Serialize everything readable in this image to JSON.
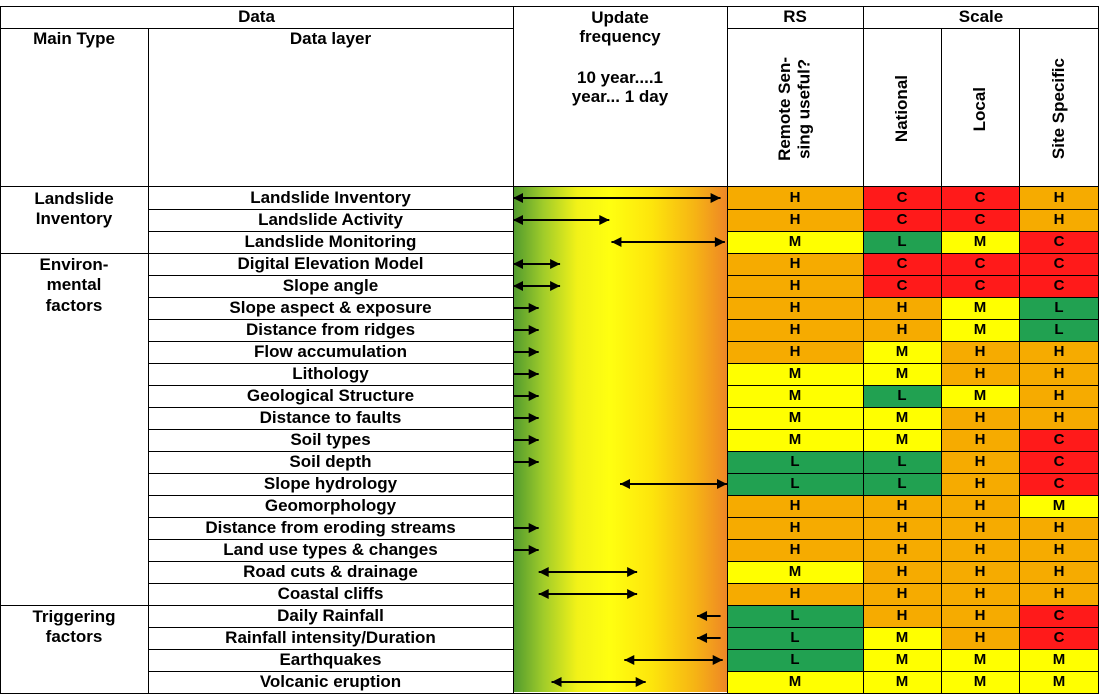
{
  "colors": {
    "H": "#f6ab00",
    "M": "#ffff00",
    "L": "#21a151",
    "C": "#ff1a1a"
  },
  "headers": {
    "data_group": "Data",
    "main_type": "Main Type",
    "data_layer": "Data layer",
    "update_line1": "Update",
    "update_line2": "frequency",
    "update_scale_line1": "10 year....1",
    "update_scale_line2": "year... 1 day",
    "rs_group": "RS",
    "rs_col": "Remote Sen-\nsing useful?",
    "scale_group": "Scale",
    "national": "National",
    "local": "Local",
    "site": "Site Specific"
  },
  "groups": [
    {
      "label": "Landslide\nInventory",
      "start": 0,
      "count": 3
    },
    {
      "label": "Environ-\nmental\nfactors",
      "start": 3,
      "count": 16
    },
    {
      "label": "Triggering\nfactors",
      "start": 19,
      "count": 4
    }
  ],
  "rows": [
    {
      "layer": "Landslide Inventory",
      "rs": "H",
      "national": "C",
      "local": "C",
      "site": "H",
      "freq": {
        "type": "both",
        "from": 0.0,
        "to": 0.97
      }
    },
    {
      "layer": "Landslide Activity",
      "rs": "H",
      "national": "C",
      "local": "C",
      "site": "H",
      "freq": {
        "type": "both",
        "from": 0.0,
        "to": 0.45
      }
    },
    {
      "layer": "Landslide Monitoring",
      "rs": "M",
      "national": "L",
      "local": "M",
      "site": "C",
      "freq": {
        "type": "both",
        "from": 0.46,
        "to": 0.99
      }
    },
    {
      "layer": "Digital Elevation Model",
      "rs": "H",
      "national": "C",
      "local": "C",
      "site": "C",
      "freq": {
        "type": "both",
        "from": 0.0,
        "to": 0.22
      }
    },
    {
      "layer": "Slope angle",
      "rs": "H",
      "national": "C",
      "local": "C",
      "site": "C",
      "freq": {
        "type": "both",
        "from": 0.0,
        "to": 0.22
      }
    },
    {
      "layer": "Slope aspect & exposure",
      "rs": "H",
      "national": "H",
      "local": "M",
      "site": "L",
      "freq": {
        "type": "right",
        "from": 0.0,
        "to": 0.12
      }
    },
    {
      "layer": "Distance from ridges",
      "rs": "H",
      "national": "H",
      "local": "M",
      "site": "L",
      "freq": {
        "type": "right",
        "from": 0.0,
        "to": 0.12
      }
    },
    {
      "layer": "Flow accumulation",
      "rs": "H",
      "national": "M",
      "local": "H",
      "site": "H",
      "freq": {
        "type": "right",
        "from": 0.0,
        "to": 0.12
      }
    },
    {
      "layer": "Lithology",
      "rs": "M",
      "national": "M",
      "local": "H",
      "site": "H",
      "freq": {
        "type": "right",
        "from": 0.0,
        "to": 0.12
      }
    },
    {
      "layer": "Geological Structure",
      "rs": "M",
      "national": "L",
      "local": "M",
      "site": "H",
      "freq": {
        "type": "right",
        "from": 0.0,
        "to": 0.12
      }
    },
    {
      "layer": "Distance to faults",
      "rs": "M",
      "national": "M",
      "local": "H",
      "site": "H",
      "freq": {
        "type": "right",
        "from": 0.0,
        "to": 0.12
      }
    },
    {
      "layer": "Soil types",
      "rs": "M",
      "national": "M",
      "local": "H",
      "site": "C",
      "freq": {
        "type": "right",
        "from": 0.0,
        "to": 0.12
      }
    },
    {
      "layer": "Soil depth",
      "rs": "L",
      "national": "L",
      "local": "H",
      "site": "C",
      "freq": {
        "type": "right",
        "from": 0.0,
        "to": 0.12
      }
    },
    {
      "layer": "Slope hydrology",
      "rs": "L",
      "national": "L",
      "local": "H",
      "site": "C",
      "freq": {
        "type": "both",
        "from": 0.5,
        "to": 1.0
      }
    },
    {
      "layer": "Geomorphology",
      "rs": "H",
      "national": "H",
      "local": "H",
      "site": "M",
      "freq": {
        "type": "none"
      }
    },
    {
      "layer": "Distance from eroding streams",
      "rs": "H",
      "national": "H",
      "local": "H",
      "site": "H",
      "freq": {
        "type": "right",
        "from": 0.0,
        "to": 0.12
      }
    },
    {
      "layer": "Land use types & changes",
      "rs": "H",
      "national": "H",
      "local": "H",
      "site": "H",
      "freq": {
        "type": "right",
        "from": 0.0,
        "to": 0.12
      }
    },
    {
      "layer": "Road cuts & drainage",
      "rs": "M",
      "national": "H",
      "local": "H",
      "site": "H",
      "freq": {
        "type": "both",
        "from": 0.12,
        "to": 0.58
      }
    },
    {
      "layer": "Coastal cliffs",
      "rs": "H",
      "national": "H",
      "local": "H",
      "site": "H",
      "freq": {
        "type": "both",
        "from": 0.12,
        "to": 0.58
      }
    },
    {
      "layer": "Daily Rainfall",
      "rs": "L",
      "national": "H",
      "local": "H",
      "site": "C",
      "freq": {
        "type": "left",
        "from": 0.86,
        "to": 0.97
      }
    },
    {
      "layer": "Rainfall intensity/Duration",
      "rs": "L",
      "national": "M",
      "local": "H",
      "site": "C",
      "freq": {
        "type": "left",
        "from": 0.86,
        "to": 0.97
      }
    },
    {
      "layer": "Earthquakes",
      "rs": "L",
      "national": "M",
      "local": "M",
      "site": "M",
      "freq": {
        "type": "both",
        "from": 0.52,
        "to": 0.98
      }
    },
    {
      "layer": "Volcanic eruption",
      "rs": "M",
      "national": "M",
      "local": "M",
      "site": "M",
      "freq": {
        "type": "both",
        "from": 0.18,
        "to": 0.62
      }
    }
  ]
}
